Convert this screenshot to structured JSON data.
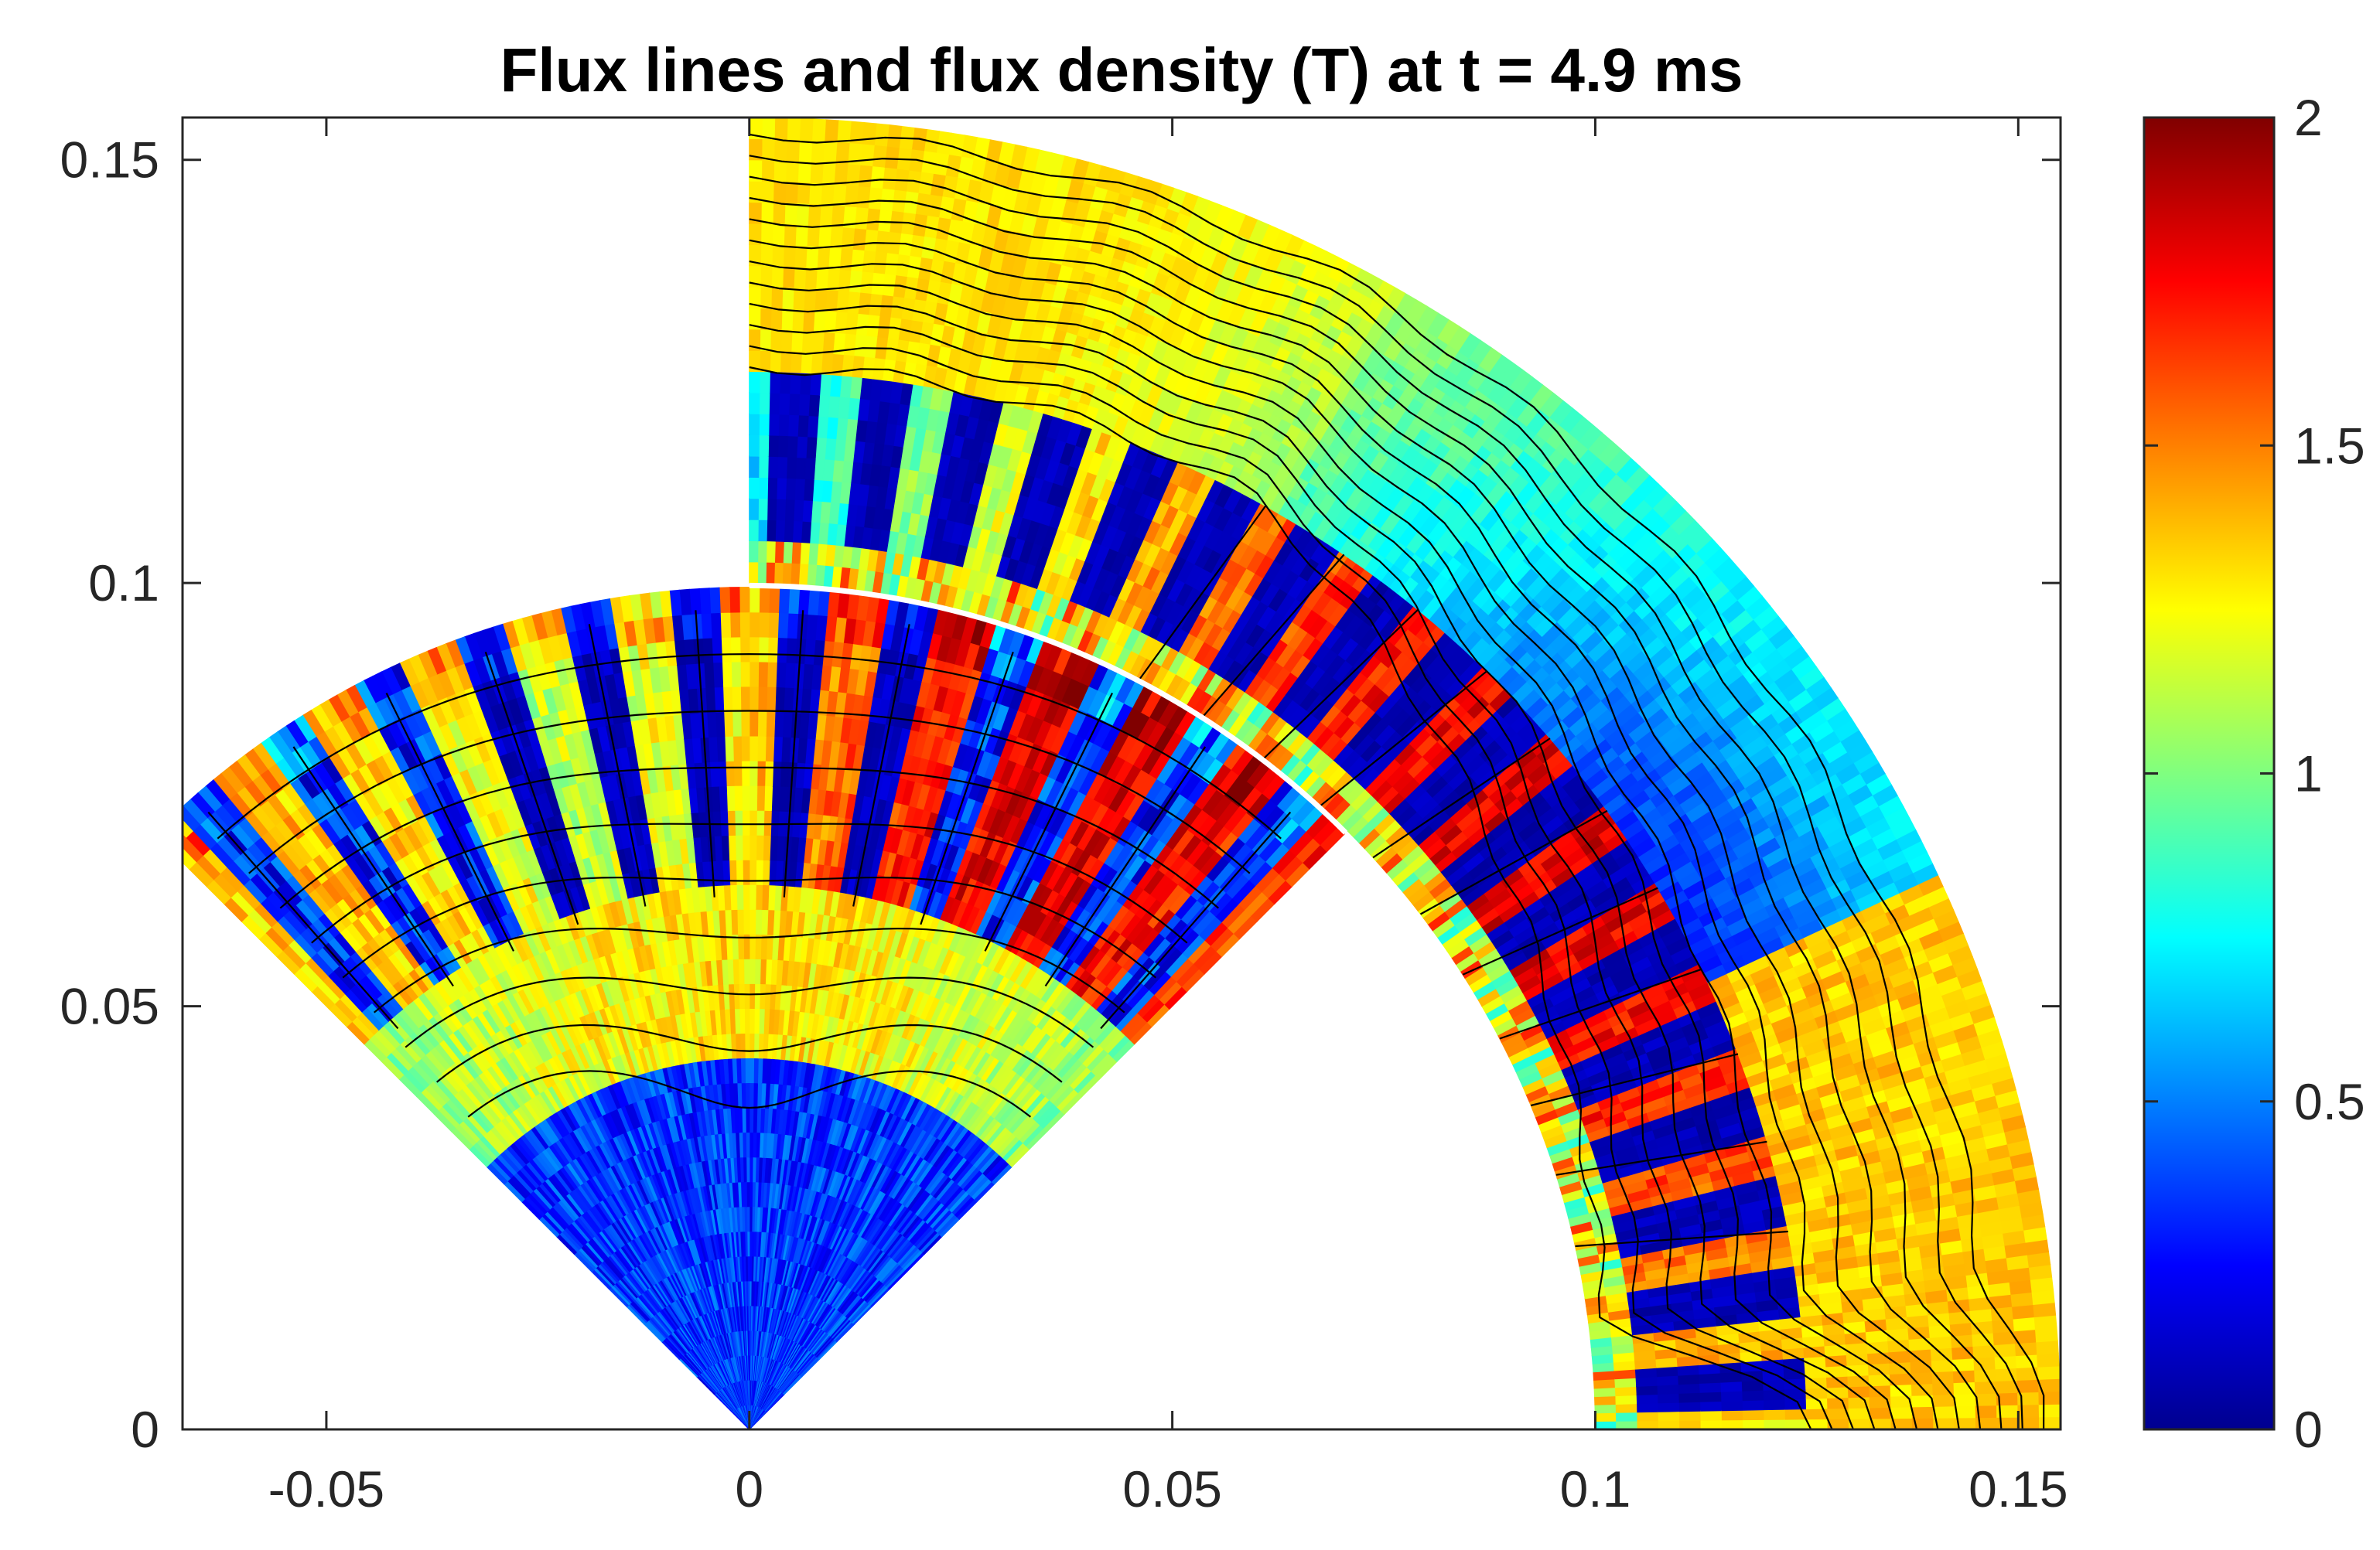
{
  "chart_data": {
    "type": "heatmap",
    "title": "Flux lines and flux density (T) at t = 4.9 ms",
    "xlabel": "",
    "ylabel": "",
    "xlim": [
      -0.067,
      0.155
    ],
    "ylim": [
      0,
      0.155
    ],
    "x_ticks": [
      -0.05,
      0,
      0.05,
      0.1,
      0.15
    ],
    "x_tick_labels": [
      "-0.05",
      "0",
      "0.05",
      "0.1",
      "0.15"
    ],
    "y_ticks": [
      0,
      0.05,
      0.1,
      0.15
    ],
    "y_tick_labels": [
      "0",
      "0.05",
      "0.1",
      "0.15"
    ],
    "colormap": "jet",
    "colorbar": {
      "range": [
        0,
        2
      ],
      "ticks": [
        0,
        0.5,
        1,
        1.5,
        2
      ],
      "tick_labels": [
        "0",
        "0.5",
        "1",
        "1.5",
        "2"
      ],
      "placement": "right"
    },
    "stator": {
      "inner_radius": 0.1,
      "outer_radius": 0.155,
      "angle_range_deg": [
        0,
        90
      ],
      "slots": 18
    },
    "rotor": {
      "outer_radius": 0.0995,
      "inner_radius": 0.063,
      "angle_range_deg": [
        45,
        135
      ],
      "slots": 12
    },
    "grid": false
  }
}
